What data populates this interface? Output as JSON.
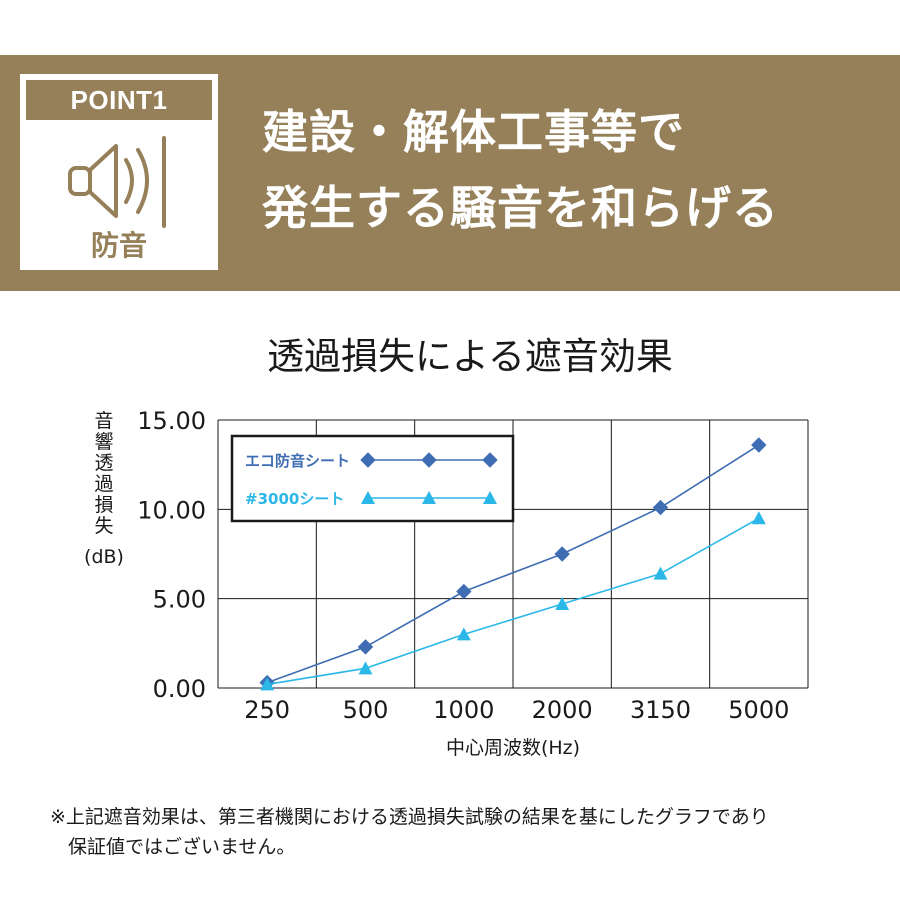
{
  "colors": {
    "banner": "#95805a",
    "series1": "#3f6db3",
    "series2": "#2bb8e8",
    "grid": "#1a1a1a"
  },
  "badge": {
    "label": "POINT1",
    "icon": "speaker-icon",
    "sub_label": "防音"
  },
  "headline": {
    "line1": "建設・解体工事等で",
    "line2": "発生する騒音を和らげる"
  },
  "note": {
    "line1": "※上記遮音効果は、第三者機関における透過損失試験の結果を基にしたグラフであり",
    "line2": "保証値ではございません。"
  },
  "chart_data": {
    "type": "line",
    "title": "透過損失による遮音効果",
    "xlabel": "中心周波数(Hz)",
    "ylabel": "音響透過損失",
    "yunit": "(dB)",
    "categories": [
      "250",
      "500",
      "1000",
      "2000",
      "3150",
      "5000"
    ],
    "yticks": [
      "0.00",
      "5.00",
      "10.00",
      "15.00"
    ],
    "ylim": [
      0,
      15
    ],
    "grid": true,
    "legend_position": "top-left",
    "series": [
      {
        "name": "エコ防音シート",
        "marker": "diamond",
        "values": [
          0.3,
          2.3,
          5.4,
          7.5,
          10.1,
          13.6
        ]
      },
      {
        "name": "#3000シート",
        "marker": "triangle",
        "values": [
          0.2,
          1.1,
          3.0,
          4.7,
          6.4,
          9.5
        ]
      }
    ]
  }
}
